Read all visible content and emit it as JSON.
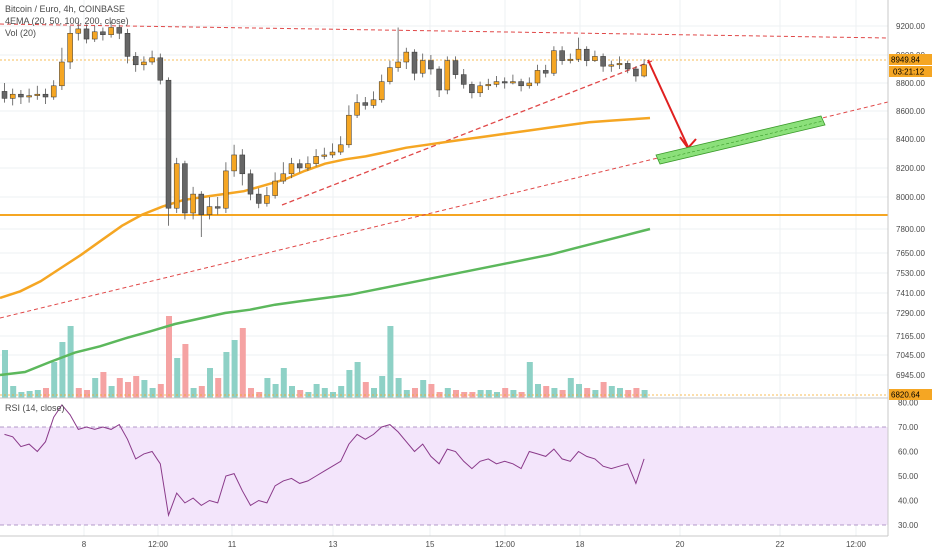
{
  "chart_data": {
    "type": "candlestick",
    "title": "Bitcoin / Euro, 4h, COINBASE",
    "indicators": {
      "ema": "4EMA (20, 50, 100, 200, close)",
      "volume": "Vol (20)",
      "rsi": "RSI (14, close)"
    },
    "price_axis": {
      "ticks": [
        "9200.00",
        "9000.00",
        "8800.00",
        "8600.00",
        "8400.00",
        "8200.00",
        "8000.00",
        "7800.00",
        "7650.00",
        "7530.00",
        "7410.00",
        "7290.00",
        "7165.00",
        "7045.00",
        "6945.00"
      ],
      "badges": [
        "8949.84",
        "03:21:12",
        "6820.64"
      ]
    },
    "rsi_axis": {
      "ticks": [
        "80.00",
        "70.00",
        "60.00",
        "50.00",
        "40.00",
        "30.00"
      ],
      "band": [
        30,
        70
      ]
    },
    "x_axis": {
      "ticks": [
        "8",
        "12:00",
        "11",
        "13",
        "15",
        "12:00",
        "18",
        "20",
        "22",
        "12:00"
      ]
    },
    "candles": [
      [
        8740,
        8690,
        8800,
        8660
      ],
      [
        8690,
        8720,
        8760,
        8640
      ],
      [
        8720,
        8700,
        8750,
        8650
      ],
      [
        8700,
        8710,
        8760,
        8660
      ],
      [
        8710,
        8720,
        8780,
        8680
      ],
      [
        8720,
        8700,
        8760,
        8650
      ],
      [
        8700,
        8780,
        8820,
        8680
      ],
      [
        8780,
        8950,
        9050,
        8750
      ],
      [
        8950,
        9150,
        9200,
        8900
      ],
      [
        9150,
        9180,
        9230,
        9100
      ],
      [
        9180,
        9110,
        9210,
        9080
      ],
      [
        9110,
        9160,
        9200,
        9090
      ],
      [
        9160,
        9140,
        9190,
        9100
      ],
      [
        9140,
        9190,
        9230,
        9120
      ],
      [
        9190,
        9150,
        9210,
        9110
      ],
      [
        9150,
        8990,
        9180,
        8940
      ],
      [
        8990,
        8930,
        9020,
        8880
      ],
      [
        8930,
        8950,
        8990,
        8890
      ],
      [
        8950,
        8980,
        9030,
        8930
      ],
      [
        8980,
        8820,
        9010,
        8790
      ],
      [
        8820,
        7930,
        8840,
        7820
      ],
      [
        7930,
        8230,
        8270,
        7900
      ],
      [
        8230,
        7900,
        8250,
        7860
      ],
      [
        7900,
        8020,
        8070,
        7860
      ],
      [
        8020,
        7890,
        8040,
        7750
      ],
      [
        7890,
        7940,
        8000,
        7860
      ],
      [
        7940,
        7930,
        8000,
        7890
      ],
      [
        7930,
        8180,
        8240,
        7900
      ],
      [
        8180,
        8290,
        8360,
        8140
      ],
      [
        8290,
        8160,
        8330,
        8080
      ],
      [
        8160,
        8020,
        8190,
        7980
      ],
      [
        8020,
        7960,
        8060,
        7930
      ],
      [
        7960,
        8010,
        8070,
        7940
      ],
      [
        8010,
        8110,
        8170,
        7990
      ],
      [
        8110,
        8160,
        8240,
        8090
      ],
      [
        8160,
        8230,
        8270,
        8130
      ],
      [
        8230,
        8200,
        8260,
        8170
      ],
      [
        8200,
        8230,
        8280,
        8180
      ],
      [
        8230,
        8280,
        8330,
        8210
      ],
      [
        8280,
        8290,
        8340,
        8260
      ],
      [
        8290,
        8310,
        8370,
        8270
      ],
      [
        8310,
        8360,
        8420,
        8290
      ],
      [
        8360,
        8570,
        8640,
        8340
      ],
      [
        8570,
        8660,
        8720,
        8550
      ],
      [
        8660,
        8640,
        8700,
        8610
      ],
      [
        8640,
        8680,
        8740,
        8620
      ],
      [
        8680,
        8810,
        8860,
        8660
      ],
      [
        8810,
        8910,
        8960,
        8790
      ],
      [
        8910,
        8950,
        9190,
        8880
      ],
      [
        8950,
        9020,
        9050,
        8900
      ],
      [
        9020,
        8870,
        9040,
        8820
      ],
      [
        8870,
        8960,
        9010,
        8840
      ],
      [
        8960,
        8900,
        9000,
        8860
      ],
      [
        8900,
        8750,
        8920,
        8700
      ],
      [
        8750,
        8960,
        8990,
        8720
      ],
      [
        8960,
        8860,
        8990,
        8830
      ],
      [
        8860,
        8790,
        8900,
        8760
      ],
      [
        8790,
        8730,
        8810,
        8690
      ],
      [
        8730,
        8780,
        8810,
        8700
      ],
      [
        8780,
        8790,
        8830,
        8750
      ],
      [
        8790,
        8810,
        8850,
        8770
      ],
      [
        8810,
        8800,
        8840,
        8760
      ],
      [
        8800,
        8810,
        8860,
        8790
      ],
      [
        8810,
        8780,
        8830,
        8740
      ],
      [
        8780,
        8800,
        8840,
        8760
      ],
      [
        8800,
        8890,
        8930,
        8780
      ],
      [
        8890,
        8870,
        8930,
        8840
      ],
      [
        8870,
        9030,
        9060,
        8850
      ],
      [
        9030,
        8960,
        9060,
        8930
      ],
      [
        8960,
        8970,
        9010,
        8940
      ],
      [
        8970,
        9040,
        9120,
        8950
      ],
      [
        9040,
        8960,
        9060,
        8920
      ],
      [
        8960,
        8990,
        9030,
        8950
      ],
      [
        8990,
        8920,
        9010,
        8880
      ],
      [
        8920,
        8930,
        8960,
        8880
      ],
      [
        8930,
        8940,
        8990,
        8900
      ],
      [
        8940,
        8900,
        8960,
        8870
      ],
      [
        8900,
        8850,
        8920,
        8810
      ],
      [
        8850,
        8930,
        8970,
        8840
      ]
    ],
    "volumes": [
      48,
      12,
      6,
      7,
      8,
      10,
      36,
      56,
      72,
      10,
      8,
      20,
      26,
      12,
      20,
      16,
      22,
      18,
      10,
      14,
      82,
      40,
      54,
      10,
      12,
      30,
      20,
      46,
      58,
      70,
      10,
      6,
      20,
      14,
      30,
      12,
      8,
      6,
      14,
      10,
      6,
      12,
      28,
      36,
      16,
      10,
      22,
      72,
      20,
      8,
      10,
      18,
      14,
      6,
      10,
      8,
      6,
      6,
      8,
      8,
      6,
      10,
      8,
      6,
      36,
      14,
      12,
      10,
      8,
      20,
      14,
      10,
      8,
      16,
      12,
      10,
      8,
      10,
      8
    ],
    "volume_bullish": [
      true,
      true,
      true,
      true,
      true,
      false,
      true,
      true,
      true,
      false,
      false,
      true,
      false,
      true,
      false,
      false,
      false,
      true,
      true,
      false,
      false,
      true,
      false,
      true,
      false,
      true,
      false,
      true,
      true,
      false,
      false,
      false,
      true,
      true,
      true,
      true,
      false,
      true,
      true,
      true,
      true,
      true,
      true,
      true,
      false,
      true,
      true,
      true,
      true,
      true,
      false,
      true,
      false,
      false,
      true,
      false,
      false,
      false,
      true,
      true,
      true,
      false,
      true,
      false,
      true,
      true,
      false,
      true,
      false,
      true,
      true,
      false,
      true,
      false,
      true,
      true,
      false,
      false,
      true
    ],
    "ema50": [
      7380,
      7420,
      7480,
      7560,
      7640,
      7730,
      7820,
      7890,
      7940,
      7980,
      8000,
      8020,
      8040,
      8080,
      8120,
      8180,
      8230,
      8260,
      8280,
      8310,
      8340,
      8360,
      8380,
      8400,
      8420,
      8440,
      8460,
      8480,
      8500,
      8520,
      8530,
      8540,
      8550
    ],
    "ema200_points": [
      6910,
      6960,
      7010,
      7060,
      7100,
      7150,
      7190,
      7230,
      7260,
      7290,
      7310,
      7340,
      7360,
      7380,
      7400,
      7430,
      7460,
      7490,
      7520,
      7550,
      7580,
      7610,
      7640,
      7680,
      7720,
      7760,
      7800
    ],
    "rsi": [
      67,
      66,
      62,
      63,
      60,
      64,
      74,
      79,
      75,
      69,
      70,
      69,
      70,
      69,
      71,
      65,
      57,
      59,
      60,
      55,
      34,
      43,
      39,
      41,
      38,
      40,
      39,
      50,
      51,
      44,
      38,
      40,
      39,
      46,
      48,
      49,
      47,
      48,
      50,
      52,
      54,
      56,
      63,
      67,
      65,
      67,
      70,
      71,
      68,
      64,
      60,
      63,
      58,
      55,
      61,
      60,
      56,
      53,
      56,
      57,
      55,
      56,
      55,
      53,
      60,
      59,
      58,
      61,
      57,
      56,
      60,
      58,
      57,
      54,
      53,
      54,
      55,
      47,
      57
    ]
  }
}
